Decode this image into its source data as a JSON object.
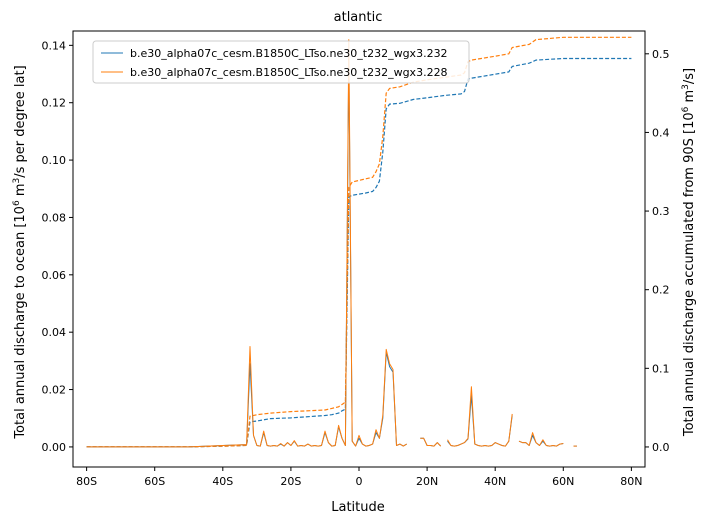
{
  "chart_data": {
    "type": "line",
    "title": "atlantic",
    "xlabel": "Latitude",
    "ylabel_left": "Total annual discharge to ocean [10⁶ m³/s per degree lat]",
    "ylabel_right": "Total annual discharge accumulated from 90S [10⁶ m³/s]",
    "xlim": [
      -84,
      84
    ],
    "ylim_left": [
      -0.007,
      0.145
    ],
    "ylim_right": [
      -0.0255,
      0.529
    ],
    "x_ticks": [
      -80,
      -60,
      -40,
      -20,
      0,
      20,
      40,
      60,
      80
    ],
    "x_tick_labels": [
      "80S",
      "60S",
      "40S",
      "20S",
      "0",
      "20N",
      "40N",
      "60N",
      "80N"
    ],
    "y_left_ticks": [
      0.0,
      0.02,
      0.04,
      0.06,
      0.08,
      0.1,
      0.12,
      0.14
    ],
    "y_left_tick_labels": [
      "0.00",
      "0.02",
      "0.04",
      "0.06",
      "0.08",
      "0.10",
      "0.12",
      "0.14"
    ],
    "y_right_ticks": [
      0.0,
      0.1,
      0.2,
      0.3,
      0.4,
      0.5
    ],
    "y_right_tick_labels": [
      "0.0",
      "0.1",
      "0.2",
      "0.3",
      "0.4",
      "0.5"
    ],
    "legend_position": "top-left",
    "grid": false,
    "series": [
      {
        "name": "b.e30_alpha07c_cesm.B1850C_LTso.ne30_t232_wgx3.232",
        "color": "#1f77b4",
        "discharge": {
          "x": [
            -80,
            -50,
            -40,
            -33,
            -32,
            -31,
            -30,
            -29,
            -28,
            -27,
            -26,
            -25,
            -24,
            -23,
            -22,
            -21,
            -20,
            -19,
            -18,
            -17,
            -16,
            -15,
            -14,
            -13,
            -12,
            -11,
            -10,
            -9,
            -8,
            -7,
            -6,
            -5,
            -4,
            -3,
            -2,
            -1,
            0,
            1,
            2,
            3,
            4,
            5,
            6,
            7,
            8,
            9,
            10,
            11,
            12,
            13,
            14
          ],
          "y": [
            0.0,
            0.0,
            0.0005,
            0.0008,
            0.029,
            0.004,
            0.0005,
            0.0003,
            0.005,
            0.0005,
            0.0003,
            0.0005,
            0.0003,
            0.001,
            0.0003,
            0.0015,
            0.0005,
            0.002,
            0.0003,
            0.0005,
            0.0003,
            0.001,
            0.0003,
            0.0005,
            0.0003,
            0.0005,
            0.005,
            0.0015,
            0.0003,
            0.0005,
            0.007,
            0.003,
            0.0005,
            0.136,
            0.002,
            0.0003,
            0.003,
            0.001,
            0.0003,
            0.0005,
            0.001,
            0.005,
            0.003,
            0.01,
            0.033,
            0.028,
            0.026,
            0.0005,
            0.001,
            0.0003,
            0.001
          ]
        },
        "discharge_segments": [
          {
            "x": [
              18,
              19,
              20,
              21,
              22,
              23,
              24
            ],
            "y": [
              0.003,
              0.003,
              0.0005,
              0.0005,
              0.0003,
              0.0015,
              0.0003
            ]
          },
          {
            "x": [
              26,
              27,
              28,
              29,
              30,
              31,
              32,
              33,
              34,
              35,
              36,
              37,
              38,
              39,
              40,
              41,
              42,
              43,
              44,
              45
            ],
            "y": [
              0.002,
              0.0005,
              0.0003,
              0.0005,
              0.001,
              0.0015,
              0.0028,
              0.018,
              0.001,
              0.0005,
              0.0003,
              0.0005,
              0.0003,
              0.0005,
              0.0015,
              0.001,
              0.0005,
              0.0003,
              0.002,
              0.011
            ]
          },
          {
            "x": [
              47,
              48,
              49,
              50,
              51,
              52,
              53,
              54,
              55,
              56,
              57,
              58,
              59,
              60
            ],
            "y": [
              0.002,
              0.0015,
              0.0015,
              0.0005,
              0.004,
              0.0015,
              0.0005,
              0.002,
              0.0005,
              0.0003,
              0.0005,
              0.0003,
              0.001,
              0.0012
            ]
          },
          {
            "x": [
              63,
              64
            ],
            "y": [
              0.0003,
              0.0003
            ]
          }
        ],
        "accumulated": {
          "x": [
            -80,
            -50,
            -40,
            -33,
            -32,
            -30,
            -26,
            -20,
            -10,
            -8,
            -6,
            -5,
            -4,
            -3,
            -2,
            2,
            4,
            5,
            6,
            7,
            8,
            9,
            12,
            16,
            20,
            25,
            30,
            31,
            32,
            33,
            40,
            44,
            45,
            50,
            52,
            60,
            80
          ],
          "y": [
            0.0,
            0.0,
            0.001,
            0.002,
            0.032,
            0.033,
            0.036,
            0.037,
            0.04,
            0.041,
            0.043,
            0.046,
            0.048,
            0.318,
            0.32,
            0.323,
            0.325,
            0.33,
            0.338,
            0.375,
            0.43,
            0.436,
            0.437,
            0.442,
            0.444,
            0.447,
            0.449,
            0.452,
            0.468,
            0.469,
            0.474,
            0.477,
            0.484,
            0.488,
            0.492,
            0.494,
            0.494
          ]
        }
      },
      {
        "name": "b.e30_alpha07c_cesm.B1850C_LTso.ne30_t232_wgx3.228",
        "color": "#ff7f0e",
        "discharge": {
          "x": [
            -80,
            -50,
            -40,
            -33,
            -32,
            -31,
            -30,
            -29,
            -28,
            -27,
            -26,
            -25,
            -24,
            -23,
            -22,
            -21,
            -20,
            -19,
            -18,
            -17,
            -16,
            -15,
            -14,
            -13,
            -12,
            -11,
            -10,
            -9,
            -8,
            -7,
            -6,
            -5,
            -4,
            -3,
            -2,
            -1,
            0,
            1,
            2,
            3,
            4,
            5,
            6,
            7,
            8,
            9,
            10,
            11,
            12,
            13,
            14
          ],
          "y": [
            0.0,
            0.0,
            0.0005,
            0.0008,
            0.035,
            0.004,
            0.0005,
            0.0003,
            0.0055,
            0.0005,
            0.0003,
            0.0005,
            0.0003,
            0.0012,
            0.0003,
            0.0015,
            0.0005,
            0.0022,
            0.0003,
            0.0005,
            0.0003,
            0.001,
            0.0003,
            0.0005,
            0.0003,
            0.0005,
            0.0055,
            0.0015,
            0.0003,
            0.0005,
            0.0075,
            0.003,
            0.0005,
            0.142,
            0.002,
            0.0003,
            0.004,
            0.001,
            0.0003,
            0.0005,
            0.001,
            0.006,
            0.003,
            0.011,
            0.034,
            0.029,
            0.027,
            0.0005,
            0.001,
            0.0003,
            0.001
          ]
        },
        "discharge_segments": [
          {
            "x": [
              18,
              19,
              20,
              21,
              22,
              23,
              24
            ],
            "y": [
              0.003,
              0.003,
              0.0005,
              0.0005,
              0.0003,
              0.0015,
              0.0003
            ]
          },
          {
            "x": [
              26,
              27,
              28,
              29,
              30,
              31,
              32,
              33,
              34,
              35,
              36,
              37,
              38,
              39,
              40,
              41,
              42,
              43,
              44,
              45
            ],
            "y": [
              0.0025,
              0.0005,
              0.0003,
              0.0005,
              0.001,
              0.0015,
              0.003,
              0.021,
              0.001,
              0.0005,
              0.0003,
              0.0005,
              0.0003,
              0.0005,
              0.0015,
              0.001,
              0.0005,
              0.0003,
              0.002,
              0.0115
            ]
          },
          {
            "x": [
              47,
              48,
              49,
              50,
              51,
              52,
              53,
              54,
              55,
              56,
              57,
              58,
              59,
              60
            ],
            "y": [
              0.002,
              0.0015,
              0.0015,
              0.0005,
              0.005,
              0.0015,
              0.0005,
              0.0025,
              0.0005,
              0.0003,
              0.0005,
              0.0003,
              0.001,
              0.0012
            ]
          },
          {
            "x": [
              63,
              64
            ],
            "y": [
              0.0003,
              0.0003
            ]
          }
        ],
        "accumulated": {
          "x": [
            -80,
            -50,
            -40,
            -33,
            -32,
            -30,
            -26,
            -20,
            -10,
            -8,
            -6,
            -5,
            -4,
            -3,
            -2,
            2,
            4,
            5,
            6,
            7,
            8,
            9,
            12,
            16,
            20,
            25,
            30,
            31,
            32,
            33,
            40,
            44,
            45,
            50,
            52,
            60,
            80
          ],
          "y": [
            0.0,
            0.0,
            0.001,
            0.002,
            0.039,
            0.041,
            0.043,
            0.045,
            0.047,
            0.049,
            0.051,
            0.054,
            0.057,
            0.33,
            0.337,
            0.341,
            0.343,
            0.35,
            0.36,
            0.395,
            0.45,
            0.456,
            0.458,
            0.464,
            0.467,
            0.47,
            0.473,
            0.476,
            0.49,
            0.492,
            0.497,
            0.5,
            0.508,
            0.512,
            0.518,
            0.521,
            0.521
          ]
        }
      }
    ]
  }
}
